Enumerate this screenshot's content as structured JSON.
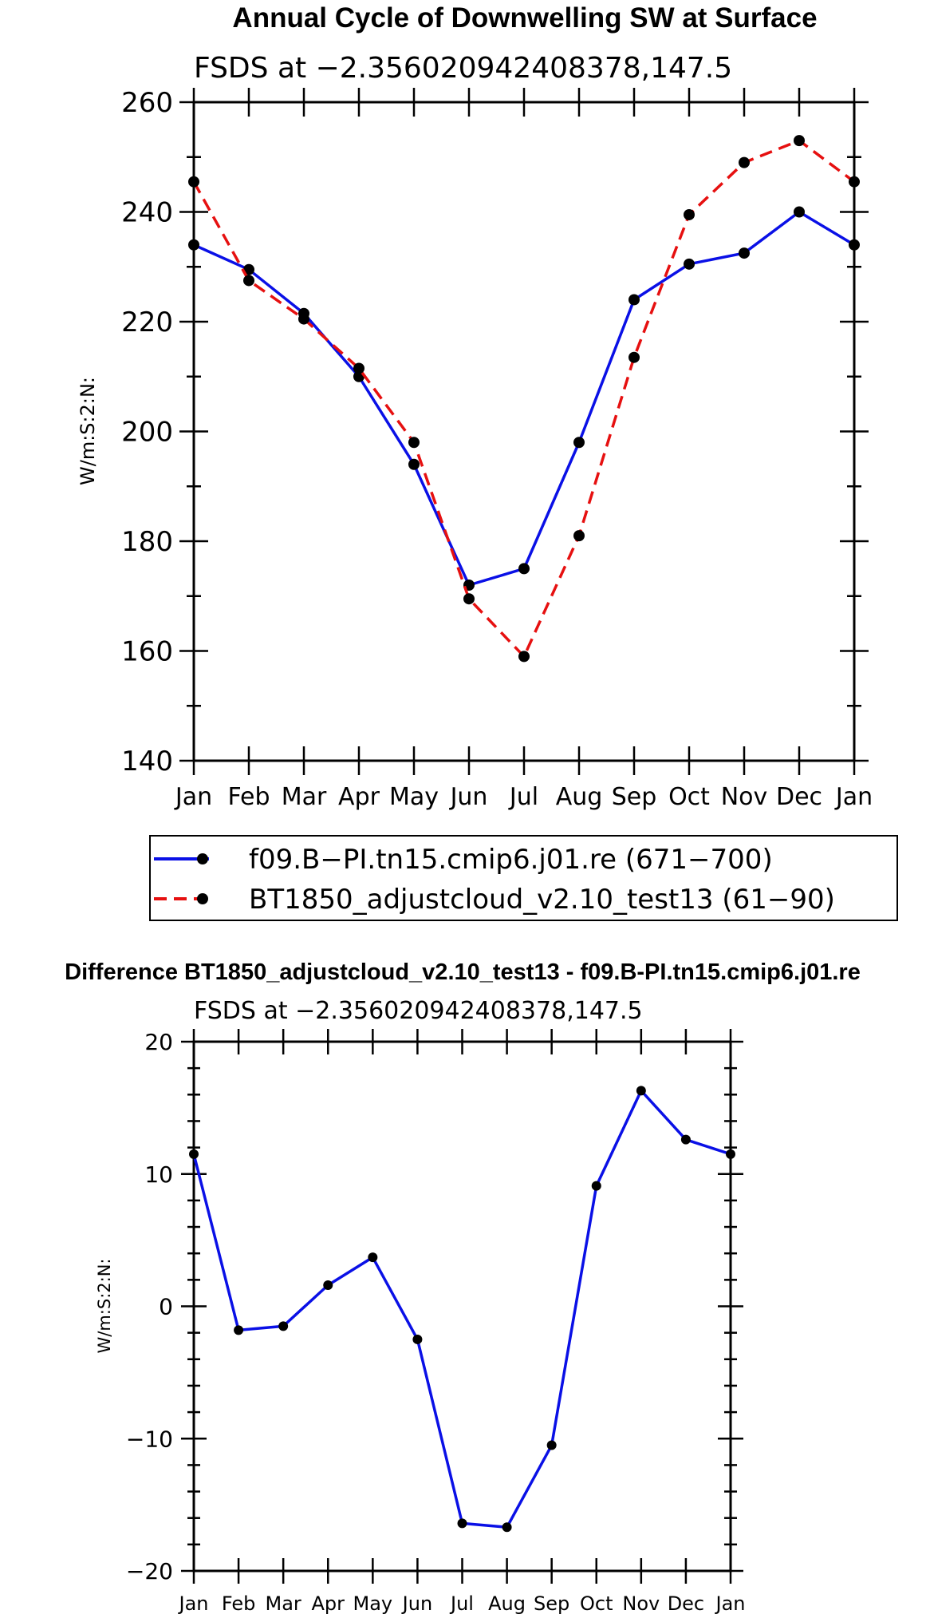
{
  "chart_data": [
    {
      "type": "line",
      "title": "Annual Cycle of Downwelling SW at Surface",
      "subtitle": "FSDS at −2.356020942408378,147.5",
      "xlabel": "",
      "ylabel": "W/m:S:2:N:",
      "categories": [
        "Jan",
        "Feb",
        "Mar",
        "Apr",
        "May",
        "Jun",
        "Jul",
        "Aug",
        "Sep",
        "Oct",
        "Nov",
        "Dec",
        "Jan"
      ],
      "ylim": [
        140,
        260
      ],
      "yticks": [
        "140",
        "160",
        "180",
        "200",
        "220",
        "240",
        "260"
      ],
      "series": [
        {
          "name": "f09.B−PI.tn15.cmip6.j01.re (671−700)",
          "color": "#0a10e6",
          "dash": "solid",
          "values": [
            234,
            229.5,
            221.5,
            210,
            194,
            172,
            175,
            198,
            224,
            230.5,
            232.5,
            240,
            234
          ]
        },
        {
          "name": "BT1850_adjustcloud_v2.10_test13 (61−90)",
          "color": "#e61010",
          "dash": "dashed",
          "values": [
            245.5,
            227.5,
            220.5,
            211.5,
            198,
            169.5,
            159,
            181,
            213.5,
            239.5,
            249,
            253,
            245.5
          ]
        }
      ]
    },
    {
      "type": "line",
      "title": "Difference BT1850_adjustcloud_v2.10_test13 - f09.B-PI.tn15.cmip6.j01.re",
      "subtitle": "FSDS at −2.356020942408378,147.5",
      "xlabel": "",
      "ylabel": "W/m:S:2:N:",
      "categories": [
        "Jan",
        "Feb",
        "Mar",
        "Apr",
        "May",
        "Jun",
        "Jul",
        "Aug",
        "Sep",
        "Oct",
        "Nov",
        "Dec",
        "Jan"
      ],
      "ylim": [
        -20,
        20
      ],
      "yticks": [
        "−20",
        "−10",
        "0",
        "10",
        "20"
      ],
      "series": [
        {
          "name": "difference",
          "color": "#0a10e6",
          "dash": "solid",
          "values": [
            11.5,
            -1.8,
            -1.5,
            1.6,
            3.7,
            -2.5,
            -16.4,
            -16.7,
            -10.5,
            9.1,
            16.3,
            12.6,
            11.5
          ]
        }
      ]
    }
  ]
}
